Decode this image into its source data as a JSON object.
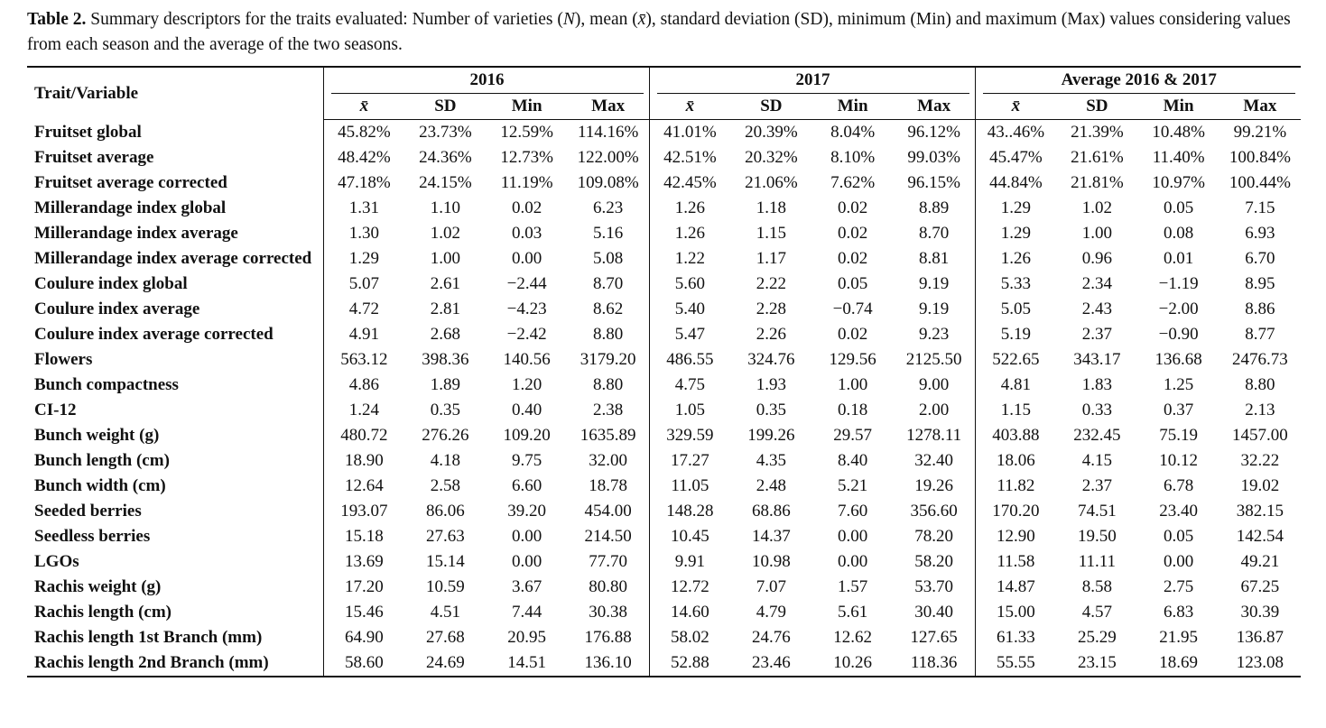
{
  "caption": {
    "label": "Table 2.",
    "parts": [
      "Summary descriptors for the traits evaluated: Number of varieties (",
      "N",
      "), mean (",
      "x̄",
      "), standard deviation (SD), minimum (Min) and maximum (Max) values considering values from each season and the average of the two seasons."
    ]
  },
  "table": {
    "corner": "Trait/Variable",
    "groups": [
      {
        "name": "2016",
        "columns": [
          "x̄",
          "SD",
          "Min",
          "Max"
        ]
      },
      {
        "name": "2017",
        "columns": [
          "x̄",
          "SD",
          "Min",
          "Max"
        ]
      },
      {
        "name": "Average 2016 & 2017",
        "columns": [
          "x̄",
          "SD",
          "Min",
          "Max"
        ]
      }
    ],
    "rows": [
      [
        "Fruitset global",
        "45.82%",
        "23.73%",
        "12.59%",
        "114.16%",
        "41.01%",
        "20.39%",
        "8.04%",
        "96.12%",
        "43..46%",
        "21.39%",
        "10.48%",
        "99.21%"
      ],
      [
        "Fruitset average",
        "48.42%",
        "24.36%",
        "12.73%",
        "122.00%",
        "42.51%",
        "20.32%",
        "8.10%",
        "99.03%",
        "45.47%",
        "21.61%",
        "11.40%",
        "100.84%"
      ],
      [
        "Fruitset average corrected",
        "47.18%",
        "24.15%",
        "11.19%",
        "109.08%",
        "42.45%",
        "21.06%",
        "7.62%",
        "96.15%",
        "44.84%",
        "21.81%",
        "10.97%",
        "100.44%"
      ],
      [
        "Millerandage index global",
        "1.31",
        "1.10",
        "0.02",
        "6.23",
        "1.26",
        "1.18",
        "0.02",
        "8.89",
        "1.29",
        "1.02",
        "0.05",
        "7.15"
      ],
      [
        "Millerandage index average",
        "1.30",
        "1.02",
        "0.03",
        "5.16",
        "1.26",
        "1.15",
        "0.02",
        "8.70",
        "1.29",
        "1.00",
        "0.08",
        "6.93"
      ],
      [
        "Millerandage index average corrected",
        "1.29",
        "1.00",
        "0.00",
        "5.08",
        "1.22",
        "1.17",
        "0.02",
        "8.81",
        "1.26",
        "0.96",
        "0.01",
        "6.70"
      ],
      [
        "Coulure index global",
        "5.07",
        "2.61",
        "−2.44",
        "8.70",
        "5.60",
        "2.22",
        "0.05",
        "9.19",
        "5.33",
        "2.34",
        "−1.19",
        "8.95"
      ],
      [
        "Coulure index average",
        "4.72",
        "2.81",
        "−4.23",
        "8.62",
        "5.40",
        "2.28",
        "−0.74",
        "9.19",
        "5.05",
        "2.43",
        "−2.00",
        "8.86"
      ],
      [
        "Coulure index average corrected",
        "4.91",
        "2.68",
        "−2.42",
        "8.80",
        "5.47",
        "2.26",
        "0.02",
        "9.23",
        "5.19",
        "2.37",
        "−0.90",
        "8.77"
      ],
      [
        "Flowers",
        "563.12",
        "398.36",
        "140.56",
        "3179.20",
        "486.55",
        "324.76",
        "129.56",
        "2125.50",
        "522.65",
        "343.17",
        "136.68",
        "2476.73"
      ],
      [
        "Bunch compactness",
        "4.86",
        "1.89",
        "1.20",
        "8.80",
        "4.75",
        "1.93",
        "1.00",
        "9.00",
        "4.81",
        "1.83",
        "1.25",
        "8.80"
      ],
      [
        "CI-12",
        "1.24",
        "0.35",
        "0.40",
        "2.38",
        "1.05",
        "0.35",
        "0.18",
        "2.00",
        "1.15",
        "0.33",
        "0.37",
        "2.13"
      ],
      [
        "Bunch weight (g)",
        "480.72",
        "276.26",
        "109.20",
        "1635.89",
        "329.59",
        "199.26",
        "29.57",
        "1278.11",
        "403.88",
        "232.45",
        "75.19",
        "1457.00"
      ],
      [
        "Bunch length (cm)",
        "18.90",
        "4.18",
        "9.75",
        "32.00",
        "17.27",
        "4.35",
        "8.40",
        "32.40",
        "18.06",
        "4.15",
        "10.12",
        "32.22"
      ],
      [
        "Bunch width (cm)",
        "12.64",
        "2.58",
        "6.60",
        "18.78",
        "11.05",
        "2.48",
        "5.21",
        "19.26",
        "11.82",
        "2.37",
        "6.78",
        "19.02"
      ],
      [
        "Seeded berries",
        "193.07",
        "86.06",
        "39.20",
        "454.00",
        "148.28",
        "68.86",
        "7.60",
        "356.60",
        "170.20",
        "74.51",
        "23.40",
        "382.15"
      ],
      [
        "Seedless berries",
        "15.18",
        "27.63",
        "0.00",
        "214.50",
        "10.45",
        "14.37",
        "0.00",
        "78.20",
        "12.90",
        "19.50",
        "0.05",
        "142.54"
      ],
      [
        "LGOs",
        "13.69",
        "15.14",
        "0.00",
        "77.70",
        "9.91",
        "10.98",
        "0.00",
        "58.20",
        "11.58",
        "11.11",
        "0.00",
        "49.21"
      ],
      [
        "Rachis weight (g)",
        "17.20",
        "10.59",
        "3.67",
        "80.80",
        "12.72",
        "7.07",
        "1.57",
        "53.70",
        "14.87",
        "8.58",
        "2.75",
        "67.25"
      ],
      [
        "Rachis length (cm)",
        "15.46",
        "4.51",
        "7.44",
        "30.38",
        "14.60",
        "4.79",
        "5.61",
        "30.40",
        "15.00",
        "4.57",
        "6.83",
        "30.39"
      ],
      [
        "Rachis length 1st Branch (mm)",
        "64.90",
        "27.68",
        "20.95",
        "176.88",
        "58.02",
        "24.76",
        "12.62",
        "127.65",
        "61.33",
        "25.29",
        "21.95",
        "136.87"
      ],
      [
        "Rachis length 2nd Branch (mm)",
        "58.60",
        "24.69",
        "14.51",
        "136.10",
        "52.88",
        "23.46",
        "10.26",
        "118.36",
        "55.55",
        "23.15",
        "18.69",
        "123.08"
      ]
    ]
  }
}
